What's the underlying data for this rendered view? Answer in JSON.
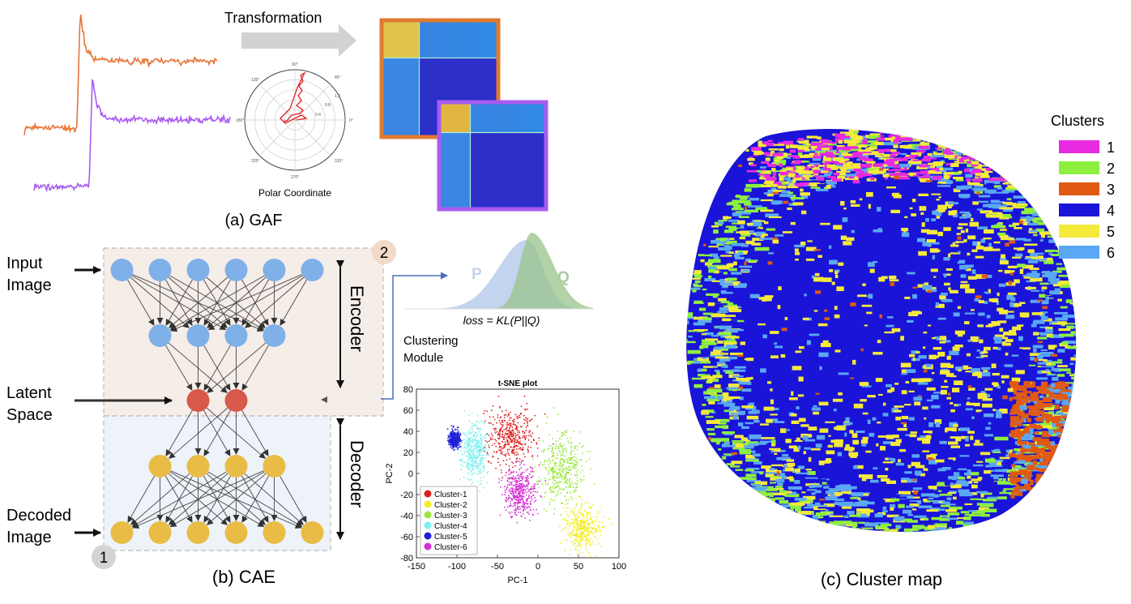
{
  "gaf": {
    "transformation_label": "Transformation",
    "polar_label": "Polar Coordinate",
    "polar_ticks": [
      "90°",
      "45°",
      "135°",
      "180°",
      "0°",
      "225°",
      "270°",
      "315°"
    ],
    "polar_radii": [
      "0.4",
      "0.8",
      "1.2"
    ],
    "caption": "(a) GAF",
    "colors": {
      "signal1": "#e8753a",
      "signal2": "#a85cf0",
      "frame1": "#e07a30",
      "frame2": "#a85cf0"
    }
  },
  "cae": {
    "input_label": [
      "Input",
      "Image"
    ],
    "latent_label": [
      "Latent",
      "Space"
    ],
    "decoded_label": [
      "Decoded",
      "Image"
    ],
    "encoder_label": "Encoder",
    "decoder_label": "Decoder",
    "badge_1": "1",
    "badge_2": "2",
    "caption": "(b) CAE",
    "layers": [
      6,
      4,
      2,
      4,
      6
    ],
    "colors": {
      "blue": "#7fb0e8",
      "red": "#d8584a",
      "yellow": "#e8bc45",
      "encoder_bg": "#f5ede8",
      "decoder_bg": "#eef3fa"
    }
  },
  "clustering": {
    "p_label": "P",
    "q_label": "Q",
    "loss_label": "loss = KL(P||Q)",
    "module_label": [
      "Clustering",
      "Module"
    ]
  },
  "chart_data": {
    "type": "scatter",
    "title": "t-SNE plot",
    "xlabel": "PC-1",
    "ylabel": "PC-2",
    "xlim": [
      -150,
      100
    ],
    "ylim": [
      -80,
      80
    ],
    "xticks": [
      -150,
      -100,
      -50,
      0,
      50,
      100
    ],
    "yticks": [
      80,
      60,
      40,
      20,
      0,
      -20,
      -40,
      -60,
      -80
    ],
    "legend_position": "bottom-left",
    "series": [
      {
        "name": "Cluster-1",
        "color": "#dd1f1f",
        "center": [
          -35,
          35
        ],
        "spread": [
          18,
          16
        ]
      },
      {
        "name": "Cluster-2",
        "color": "#f2ee2c",
        "center": [
          55,
          -52
        ],
        "spread": [
          14,
          15
        ]
      },
      {
        "name": "Cluster-3",
        "color": "#9be840",
        "center": [
          30,
          5
        ],
        "spread": [
          16,
          22
        ]
      },
      {
        "name": "Cluster-4",
        "color": "#7ff0ef",
        "center": [
          -78,
          20
        ],
        "spread": [
          10,
          18
        ]
      },
      {
        "name": "Cluster-5",
        "color": "#2020d8",
        "center": [
          -103,
          32
        ],
        "spread": [
          4,
          5
        ]
      },
      {
        "name": "Cluster-6",
        "color": "#d52fd5",
        "center": [
          -22,
          -18
        ],
        "spread": [
          12,
          14
        ]
      }
    ]
  },
  "cluster_map": {
    "caption": "(c) Cluster map",
    "legend_title": "Clusters",
    "clusters": [
      {
        "label": "1",
        "color": "#e82ae0"
      },
      {
        "label": "2",
        "color": "#8ef03e"
      },
      {
        "label": "3",
        "color": "#e05a14"
      },
      {
        "label": "4",
        "color": "#1a14d8"
      },
      {
        "label": "5",
        "color": "#f5ea3a"
      },
      {
        "label": "6",
        "color": "#5aa8f5"
      }
    ]
  }
}
